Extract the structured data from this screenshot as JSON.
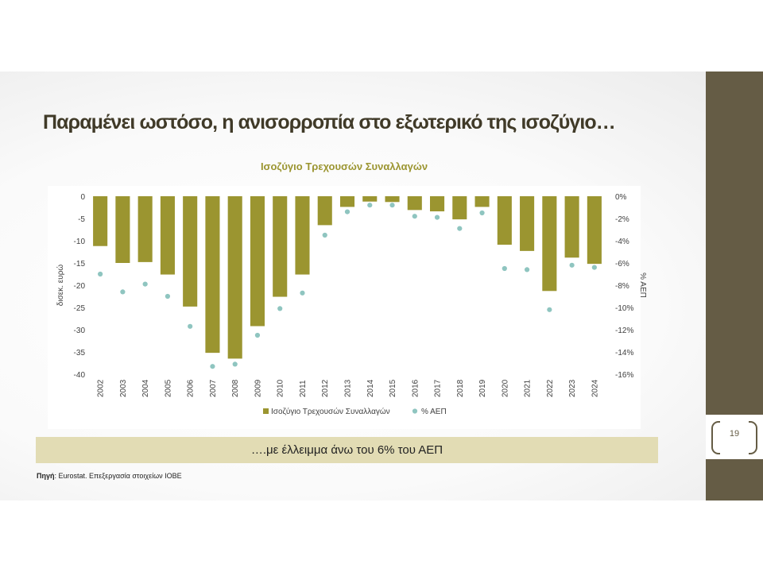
{
  "slide": {
    "title": "Παραμένει ωστόσο, η ανισορροπία στο εξωτερικό της ισοζύγιο…",
    "callout": "….με έλλειμμα άνω του 6% του ΑΕΠ",
    "source_label": "Πηγή",
    "source_text": ": Eurostat. Επεξεργασία στοιχείων ΙΟΒΕ",
    "page_number": "19"
  },
  "colors": {
    "bar": "#9b9530",
    "dot": "#8fc5c0",
    "accent_band": "#655c45",
    "callout_bg": "#e2dcb4",
    "title": "#403a28"
  },
  "chart_data": {
    "type": "bar",
    "title": "Ισοζύγιο Τρεχουσών Συναλλαγών",
    "ylabel": "δισεκ. ευρώ",
    "y2label": "% ΑΕΠ",
    "ylim": [
      -40,
      0
    ],
    "y2lim": [
      -0.16,
      0
    ],
    "yticks": [
      0,
      -5,
      -10,
      -15,
      -20,
      -25,
      -30,
      -35,
      -40
    ],
    "y2ticks": [
      "0%",
      "-2%",
      "-4%",
      "-6%",
      "-8%",
      "-10%",
      "-12%",
      "-14%",
      "-16%"
    ],
    "grid": false,
    "legend_position": "bottom",
    "categories": [
      "2002",
      "2003",
      "2004",
      "2005",
      "2006",
      "2007",
      "2008",
      "2009",
      "2010",
      "2011",
      "2012",
      "2013",
      "2014",
      "2015",
      "2016",
      "2017",
      "2018",
      "2019",
      "2020",
      "2021",
      "2022",
      "2023",
      "2024"
    ],
    "series": [
      {
        "name": "Ισοζύγιο Τρεχουσών Συναλλαγών",
        "type": "bar",
        "axis": "left",
        "values": [
          -11.2,
          -15.0,
          -14.8,
          -17.6,
          -24.8,
          -35.2,
          -36.5,
          -29.2,
          -22.6,
          -17.6,
          -6.5,
          -2.4,
          -1.2,
          -1.3,
          -3.1,
          -3.4,
          -5.2,
          -2.4,
          -10.9,
          -12.3,
          -21.3,
          -13.8,
          -15.2
        ]
      },
      {
        "name": "% ΑΕΠ",
        "type": "scatter",
        "axis": "right",
        "values": [
          -7.0,
          -8.6,
          -7.9,
          -9.0,
          -11.7,
          -15.3,
          -15.1,
          -12.5,
          -10.1,
          -8.7,
          -3.5,
          -1.4,
          -0.8,
          -0.8,
          -1.8,
          -1.9,
          -2.9,
          -1.5,
          -6.5,
          -6.6,
          -10.2,
          -6.2,
          -6.4
        ]
      }
    ]
  }
}
